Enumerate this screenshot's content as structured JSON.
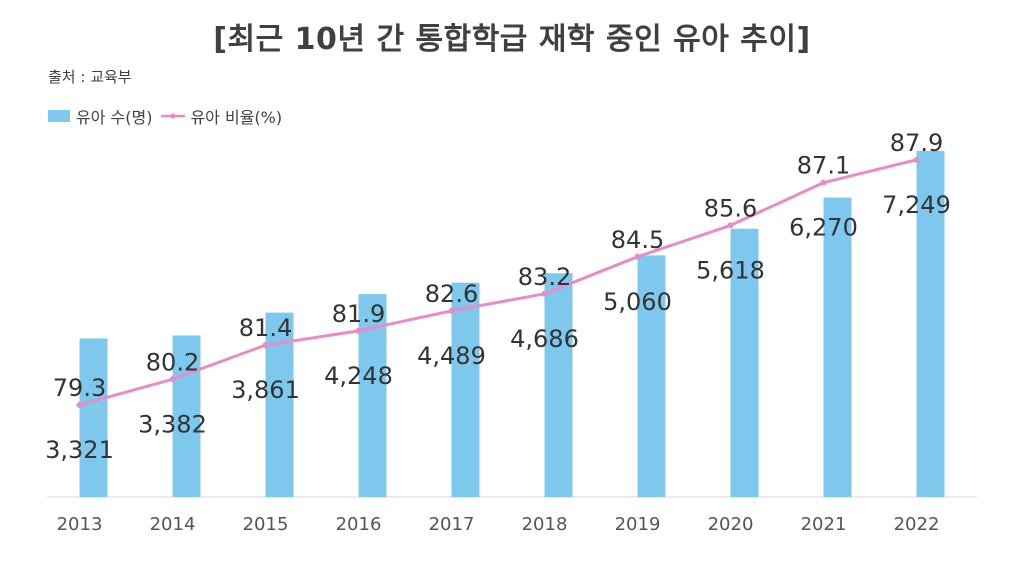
{
  "title": "[최근 10년 간 통합학급 재학 중인 유아 추이]",
  "source": "출처 : 교육부",
  "colors": {
    "bar": "#7ec8ee",
    "line": "#e88cc8",
    "axis": "#d9d9d9",
    "text": "#404040"
  },
  "chart_data": {
    "type": "bar+line",
    "title": "[최근 10년 간 통합학급 재학 중인 유아 추이]",
    "categories": [
      "2013",
      "2014",
      "2015",
      "2016",
      "2017",
      "2018",
      "2019",
      "2020",
      "2021",
      "2022"
    ],
    "series": [
      {
        "name": "유아 수(명)",
        "type": "bar",
        "values": [
          3321,
          3382,
          3861,
          4248,
          4489,
          4686,
          5060,
          5618,
          6270,
          7249
        ],
        "labels": [
          "3,321",
          "3,382",
          "3,861",
          "4,248",
          "4,489",
          "4,686",
          "5,060",
          "5,618",
          "6,270",
          "7,249"
        ]
      },
      {
        "name": "유아 비율(%)",
        "type": "line",
        "values": [
          79.3,
          80.2,
          81.4,
          81.9,
          82.6,
          83.2,
          84.5,
          85.6,
          87.1,
          87.9
        ],
        "labels": [
          "79.3",
          "80.2",
          "81.4",
          "81.9",
          "82.6",
          "83.2",
          "84.5",
          "85.6",
          "87.1",
          "87.9"
        ]
      }
    ],
    "bar_axis_range": [
      0,
      8000
    ],
    "line_axis_range": [
      74,
      90
    ],
    "legend_position": "top-left",
    "grid": false
  }
}
